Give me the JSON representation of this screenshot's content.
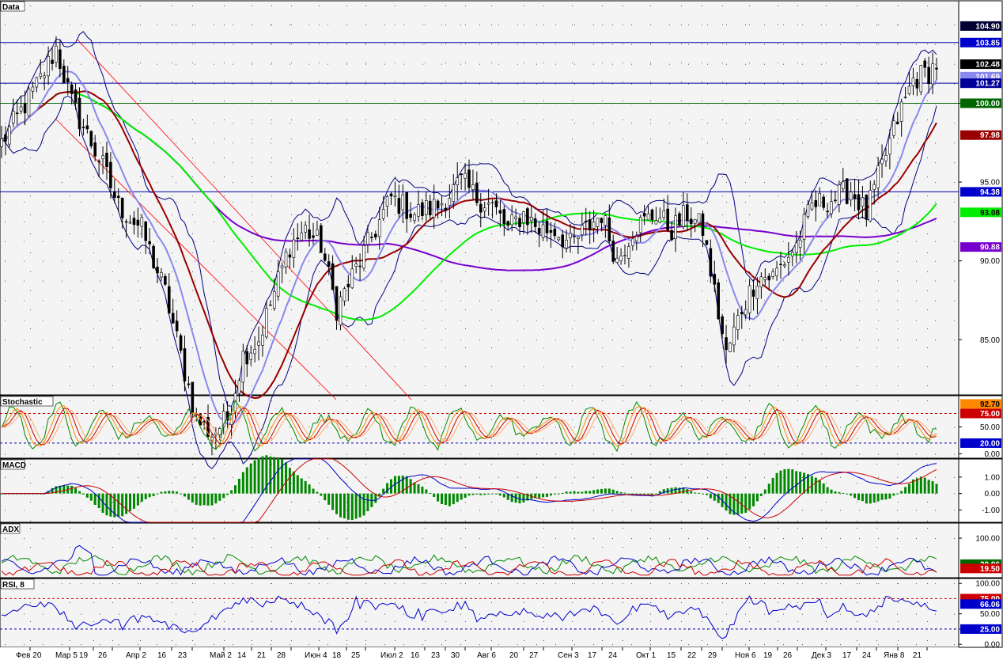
{
  "chart_data": {
    "type": "candlestick",
    "x_labels": [
      "Фев 20",
      "Мар 5",
      "19",
      "26",
      "Апр 2",
      "16",
      "23",
      "Май 2",
      "14",
      "21",
      "28",
      "Июн 4",
      "18",
      "25",
      "Июл 2",
      "16",
      "23",
      "30",
      "Авг 6",
      "20",
      "27",
      "Сен 3",
      "17",
      "24",
      "Окт 1",
      "15",
      "22",
      "29",
      "Ноя 6",
      "19",
      "26",
      "Дек 3",
      "17",
      "24",
      "Янв 8",
      "21"
    ],
    "panels": [
      {
        "name": "Data",
        "ylim": [
          81.5,
          106.5
        ],
        "y_ticks": [
          "85.00",
          "90.00",
          "95.00",
          "100.00"
        ],
        "price_tags": [
          {
            "text": "104.90",
            "bg": "#000033",
            "fg": "#ffffff"
          },
          {
            "text": "103.85",
            "bg": "#0000cc",
            "fg": "#ffffff"
          },
          {
            "text": "102.48",
            "bg": "#000000",
            "fg": "#ffffff"
          },
          {
            "text": "101.69",
            "bg": "#8888ee",
            "fg": "#ffffff"
          },
          {
            "text": "101.27",
            "bg": "#000099",
            "fg": "#ffffff"
          },
          {
            "text": "100.00",
            "bg": "#006600",
            "fg": "#ffffff"
          },
          {
            "text": "97.98",
            "bg": "#990000",
            "fg": "#ffffff"
          },
          {
            "text": "94.38",
            "bg": "#0000cc",
            "fg": "#ffffff"
          },
          {
            "text": "93.08",
            "bg": "#00ee00",
            "fg": "#000000"
          },
          {
            "text": "90.88",
            "bg": "#7700cc",
            "fg": "#ffffff"
          }
        ],
        "hlines": [
          {
            "value": 103.85,
            "color": "#0000aa"
          },
          {
            "value": 101.27,
            "color": "#0000aa"
          },
          {
            "value": 100.0,
            "color": "#006600"
          },
          {
            "value": 94.38,
            "color": "#0000aa"
          }
        ],
        "close_anchors": [
          [
            0,
            97.5
          ],
          [
            10,
            101.5
          ],
          [
            14,
            103.5
          ],
          [
            18,
            100
          ],
          [
            22,
            98
          ],
          [
            26,
            96
          ],
          [
            30,
            93.5
          ],
          [
            36,
            92
          ],
          [
            42,
            88
          ],
          [
            46,
            84
          ],
          [
            50,
            80
          ],
          [
            54,
            79
          ],
          [
            58,
            80
          ],
          [
            62,
            84
          ],
          [
            66,
            85
          ],
          [
            70,
            88
          ],
          [
            74,
            91
          ],
          [
            78,
            92
          ],
          [
            82,
            91
          ],
          [
            86,
            87
          ],
          [
            90,
            89
          ],
          [
            96,
            92
          ],
          [
            100,
            94
          ],
          [
            106,
            93
          ],
          [
            112,
            93.5
          ],
          [
            118,
            95
          ],
          [
            122,
            94
          ],
          [
            126,
            93.5
          ],
          [
            130,
            92
          ],
          [
            134,
            93
          ],
          [
            138,
            92
          ],
          [
            142,
            92
          ],
          [
            146,
            91
          ],
          [
            150,
            92
          ],
          [
            154,
            93
          ],
          [
            158,
            90
          ],
          [
            162,
            92
          ],
          [
            168,
            93
          ],
          [
            172,
            92
          ],
          [
            176,
            93
          ],
          [
            180,
            92
          ],
          [
            186,
            84
          ],
          [
            190,
            87
          ],
          [
            194,
            89
          ],
          [
            198,
            89
          ],
          [
            204,
            91
          ],
          [
            208,
            93.5
          ],
          [
            214,
            94
          ],
          [
            218,
            94.5
          ],
          [
            222,
            93
          ],
          [
            226,
            96
          ],
          [
            230,
            99
          ],
          [
            234,
            101.5
          ],
          [
            238,
            102
          ],
          [
            240,
            102.5
          ]
        ],
        "total_bars": 241,
        "series": [
          {
            "name": "",
            "color": "#000080",
            "kind": "bollinger"
          },
          {
            "name": "",
            "color": "#8888ee",
            "kind": "sma_short"
          },
          {
            "name": "",
            "color": "#990000",
            "kind": "sma_mid"
          },
          {
            "name": "",
            "color": "#00ee00",
            "kind": "sma_long"
          },
          {
            "name": "",
            "color": "#7700cc",
            "kind": "sma_longest"
          }
        ]
      },
      {
        "name": "Stochastic",
        "ylim": [
          -8,
          108
        ],
        "y_ticks": [
          "50.00",
          "0.00"
        ],
        "levels": [
          {
            "value": 75,
            "color": "#cc0000"
          },
          {
            "value": 20,
            "color": "#0000aa"
          }
        ],
        "price_tags": [
          {
            "text": "92.70",
            "bg": "#ff8800",
            "fg": "#000000"
          },
          {
            "text": "75.00",
            "bg": "#cc0000",
            "fg": "#ffffff"
          },
          {
            "text": "20.00",
            "bg": "#0000cc",
            "fg": "#ffffff"
          }
        ]
      },
      {
        "name": "MACD",
        "ylim": [
          -1.75,
          2.1
        ],
        "y_ticks": [
          "1.00",
          "0.00",
          "-1.00"
        ]
      },
      {
        "name": "ADX",
        "ylim": [
          -5,
          140
        ],
        "y_ticks": [
          "100.00"
        ],
        "price_tags": [
          {
            "text": "30.96",
            "bg": "#006600",
            "fg": "#ffffff"
          },
          {
            "text": "19.50",
            "bg": "#cc0000",
            "fg": "#ffffff"
          }
        ]
      },
      {
        "name": "RSI, 8",
        "ylim": [
          -5,
          108
        ],
        "y_ticks": [
          "100.00",
          "50.00",
          "25.00",
          "0.00"
        ],
        "levels": [
          {
            "value": 75,
            "color": "#cc0000"
          },
          {
            "value": 25,
            "color": "#0000aa"
          }
        ],
        "price_tags": [
          {
            "text": "75.00",
            "bg": "#cc0000",
            "fg": "#ffffff"
          },
          {
            "text": "66.06",
            "bg": "#0000cc",
            "fg": "#ffffff"
          },
          {
            "text": "25.00",
            "bg": "#0000cc",
            "fg": "#ffffff"
          }
        ]
      }
    ]
  }
}
